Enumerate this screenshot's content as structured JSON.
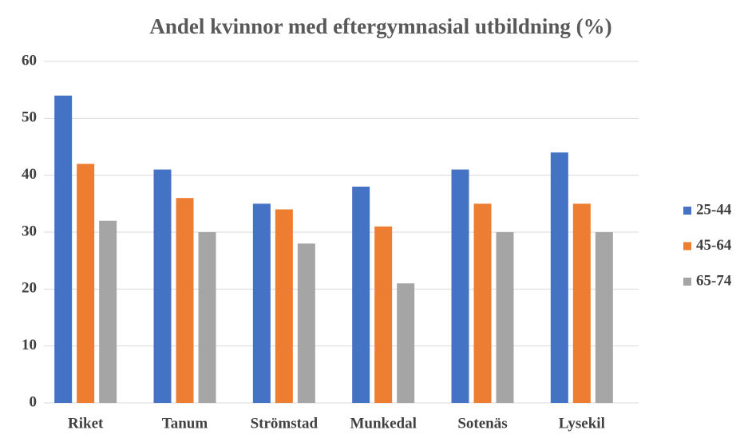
{
  "chart_data": {
    "type": "bar",
    "title": "Andel kvinnor med eftergymnasial utbildning (%)",
    "categories": [
      "Riket",
      "Tanum",
      "Strömstad",
      "Munkedal",
      "Sotenäs",
      "Lysekil"
    ],
    "series": [
      {
        "name": "25-44",
        "color": "#4472c4",
        "values": [
          54,
          41,
          35,
          38,
          41,
          44
        ]
      },
      {
        "name": "45-64",
        "color": "#ed7d31",
        "values": [
          42,
          36,
          34,
          31,
          35,
          35
        ]
      },
      {
        "name": "65-74",
        "color": "#a5a5a5",
        "values": [
          32,
          30,
          28,
          21,
          30,
          30
        ]
      }
    ],
    "ylim": [
      0,
      60
    ],
    "yticks": [
      0,
      10,
      20,
      30,
      40,
      50,
      60
    ],
    "grid": true,
    "legend": "right"
  }
}
